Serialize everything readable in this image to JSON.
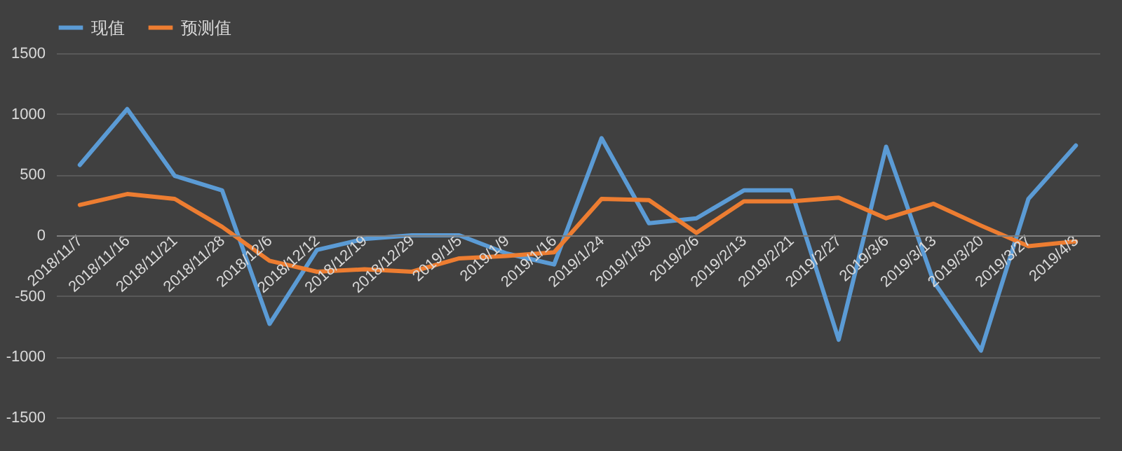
{
  "chart_data": {
    "type": "line",
    "categories": [
      "2018/11/7",
      "2018/11/16",
      "2018/11/21",
      "2018/11/28",
      "2018/12/6",
      "2018/12/12",
      "2018/12/19",
      "2018/12/29",
      "2019/1/5",
      "2019/1/9",
      "2019/1/16",
      "2019/1/24",
      "2019/1/30",
      "2019/2/6",
      "2019/2/13",
      "2019/2/21",
      "2019/2/27",
      "2019/3/6",
      "2019/3/13",
      "2019/3/20",
      "2019/3/27",
      "2019/4/3"
    ],
    "series": [
      {
        "name": "现值",
        "color": "#5b9bd5",
        "values": [
          580,
          1040,
          490,
          370,
          -730,
          -120,
          -30,
          0,
          0,
          -150,
          -240,
          800,
          100,
          140,
          370,
          370,
          -860,
          730,
          -380,
          -950,
          300,
          740
        ]
      },
      {
        "name": "预测值",
        "color": "#ed7d31",
        "values": [
          250,
          340,
          300,
          70,
          -210,
          -300,
          -280,
          -300,
          -190,
          -170,
          -140,
          300,
          290,
          20,
          280,
          280,
          310,
          140,
          260,
          80,
          -90,
          -50
        ]
      }
    ],
    "ylim": [
      -1500,
      1500
    ],
    "yticks": [
      -1500,
      -1000,
      -500,
      0,
      500,
      1000,
      1500
    ],
    "grid": "y",
    "legend": "top",
    "marker": "none",
    "line_style": "solid"
  }
}
